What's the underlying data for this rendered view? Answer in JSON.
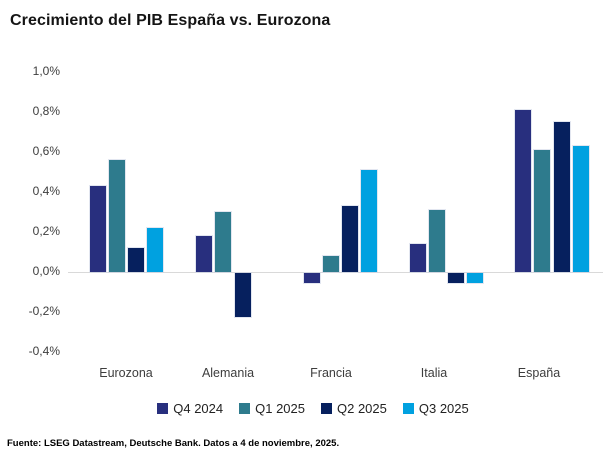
{
  "page": {
    "title": "Crecimiento del PIB España vs. Eurozona",
    "source_note": "Fuente: LSEG Datastream, Deutsche Bank. Datos a 4 de noviembre, 2025."
  },
  "colors": {
    "q4_2024": "#282f7e",
    "q1_2025": "#2e7b8d",
    "q2_2025": "#06205e",
    "q3_2025": "#00a1e0",
    "axis_line": "#d9d9d9",
    "axis_text": "#3d3d3d",
    "title_text": "#141414"
  },
  "chart_data": {
    "type": "bar",
    "title": "Crecimiento del PIB España vs. Eurozona",
    "categories": [
      "Eurozona",
      "Alemania",
      "Francia",
      "Italia",
      "España"
    ],
    "series": [
      {
        "name": "Q4 2024",
        "color": "#282f7e",
        "values": [
          0.43,
          0.18,
          -0.05,
          0.14,
          0.81
        ]
      },
      {
        "name": "Q1 2025",
        "color": "#2e7b8d",
        "values": [
          0.56,
          0.3,
          0.08,
          0.31,
          0.61
        ]
      },
      {
        "name": "Q2 2025",
        "color": "#06205e",
        "values": [
          0.12,
          -0.22,
          0.33,
          -0.05,
          0.75
        ]
      },
      {
        "name": "Q3 2025",
        "color": "#00a1e0",
        "values": [
          0.22,
          0.0,
          0.51,
          -0.05,
          0.63
        ]
      }
    ],
    "y_axis": {
      "unit": "%",
      "min": -0.4,
      "max": 1.0,
      "step": 0.2,
      "ticks": [
        {
          "value": 1.0,
          "label": "1,0%"
        },
        {
          "value": 0.8,
          "label": "0,8%"
        },
        {
          "value": 0.6,
          "label": "0,6%"
        },
        {
          "value": 0.4,
          "label": "0,4%"
        },
        {
          "value": 0.2,
          "label": "0,2%"
        },
        {
          "value": 0.0,
          "label": "0,0%"
        },
        {
          "value": -0.2,
          "label": "-0,2%"
        },
        {
          "value": -0.4,
          "label": "-0,4%"
        }
      ]
    },
    "grid": false,
    "legend_position": "bottom"
  }
}
